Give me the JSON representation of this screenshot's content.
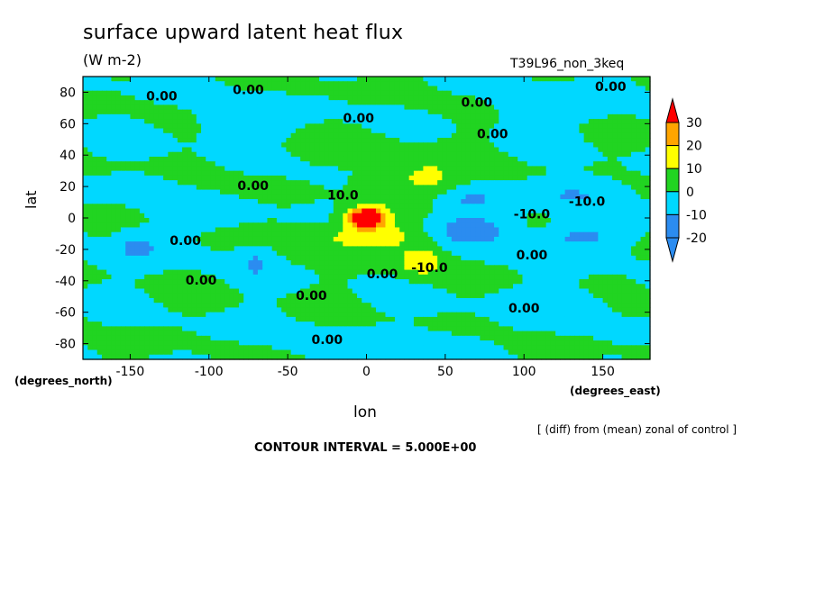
{
  "header": {
    "title": "surface upward latent heat flux",
    "units": "(W m-2)",
    "run_name": "T39L96_non_3keq"
  },
  "axes": {
    "y_word": "lat",
    "x_word": "lon",
    "y_note": "(degrees_north)",
    "x_note": "(degrees_east)"
  },
  "footer": {
    "diff_note": "[ (diff) from (mean) zonal of control ]",
    "contour_interval": "CONTOUR INTERVAL = 5.000E+00"
  },
  "chart_data": {
    "type": "heatmap",
    "xlabel": "lon",
    "ylabel": "lat",
    "xlim": [
      -180,
      180
    ],
    "ylim": [
      -90,
      90
    ],
    "x_ticks": [
      -150,
      -100,
      -50,
      0,
      50,
      100,
      150
    ],
    "y_ticks": [
      80,
      60,
      40,
      20,
      0,
      -20,
      -40,
      -60,
      -80
    ],
    "levels": [
      -20,
      -10,
      0,
      10,
      20,
      30
    ],
    "level_colors": [
      "#2b8cf0",
      "#00d8ff",
      "#21d421",
      "#ffff00",
      "#ffa500",
      "#ff0000"
    ],
    "low_color": "#2b8cf0",
    "high_color": "#ff0000",
    "colorbar_labels": [
      "30",
      "20",
      "10",
      "0",
      "-10",
      "-20"
    ],
    "contour_interval": 5,
    "contour_labels": [
      {
        "text": "0.00",
        "lon": -130,
        "lat": 77
      },
      {
        "text": "0.00",
        "lon": -75,
        "lat": 81
      },
      {
        "text": "0.00",
        "lon": 70,
        "lat": 73
      },
      {
        "text": "0.00",
        "lon": 155,
        "lat": 83
      },
      {
        "text": "0.00",
        "lon": -5,
        "lat": 63
      },
      {
        "text": "0.00",
        "lon": 80,
        "lat": 53
      },
      {
        "text": "0.00",
        "lon": -72,
        "lat": 20
      },
      {
        "text": "10.0",
        "lon": -15,
        "lat": 14
      },
      {
        "text": "-10.0",
        "lon": 105,
        "lat": 2
      },
      {
        "text": "-10.0",
        "lon": 140,
        "lat": 10
      },
      {
        "text": "0.00",
        "lon": -115,
        "lat": -15
      },
      {
        "text": "-10.0",
        "lon": 40,
        "lat": -32
      },
      {
        "text": "0.00",
        "lon": 10,
        "lat": -36
      },
      {
        "text": "0.00",
        "lon": 105,
        "lat": -24
      },
      {
        "text": "0.00",
        "lon": -105,
        "lat": -40
      },
      {
        "text": "0.00",
        "lon": -35,
        "lat": -50
      },
      {
        "text": "0.00",
        "lon": 100,
        "lat": -58
      },
      {
        "text": "0.00",
        "lon": -25,
        "lat": -78
      }
    ],
    "field": [
      {
        "lon": 0,
        "lat": 0,
        "amp": 55,
        "slon": 12,
        "slat": 6
      },
      {
        "lon": 0,
        "lat": -12,
        "amp": 16,
        "slon": 40,
        "slat": 9
      },
      {
        "lon": 35,
        "lat": -28,
        "amp": 17,
        "slon": 14,
        "slat": 9
      },
      {
        "lon": 38,
        "lat": 25,
        "amp": 14,
        "slon": 22,
        "slat": 12
      },
      {
        "lon": 5,
        "lat": 20,
        "amp": 9,
        "slon": 12,
        "slat": 10
      },
      {
        "lon": 65,
        "lat": -8,
        "amp": -16,
        "slon": 28,
        "slat": 10
      },
      {
        "lon": 135,
        "lat": -12,
        "amp": -14,
        "slon": 22,
        "slat": 9
      },
      {
        "lon": 130,
        "lat": 15,
        "amp": -11,
        "slon": 25,
        "slat": 10
      },
      {
        "lon": 65,
        "lat": 12,
        "amp": -9,
        "slon": 25,
        "slat": 8
      },
      {
        "lon": -145,
        "lat": -18,
        "amp": -13,
        "slon": 15,
        "slat": 11
      },
      {
        "lon": -70,
        "lat": -28,
        "amp": -11,
        "slon": 12,
        "slat": 10
      },
      {
        "lon": -145,
        "lat": 18,
        "amp": -8,
        "slon": 18,
        "slat": 8
      },
      {
        "lon": -95,
        "lat": 5,
        "amp": -7,
        "slon": 30,
        "slat": 7
      },
      {
        "lon": -10,
        "lat": 45,
        "amp": 4,
        "slon": 40,
        "slat": 10
      },
      {
        "lon": 120,
        "lat": -55,
        "amp": -6,
        "slon": 40,
        "slat": 10
      },
      {
        "lon": -80,
        "lat": 60,
        "amp": -5,
        "slon": 40,
        "slat": 12
      },
      {
        "lon": 120,
        "lat": 70,
        "amp": -5,
        "slon": 40,
        "slat": 12
      },
      {
        "lon": 0,
        "lat": -78,
        "amp": -5,
        "slon": 60,
        "slat": 8
      }
    ]
  }
}
